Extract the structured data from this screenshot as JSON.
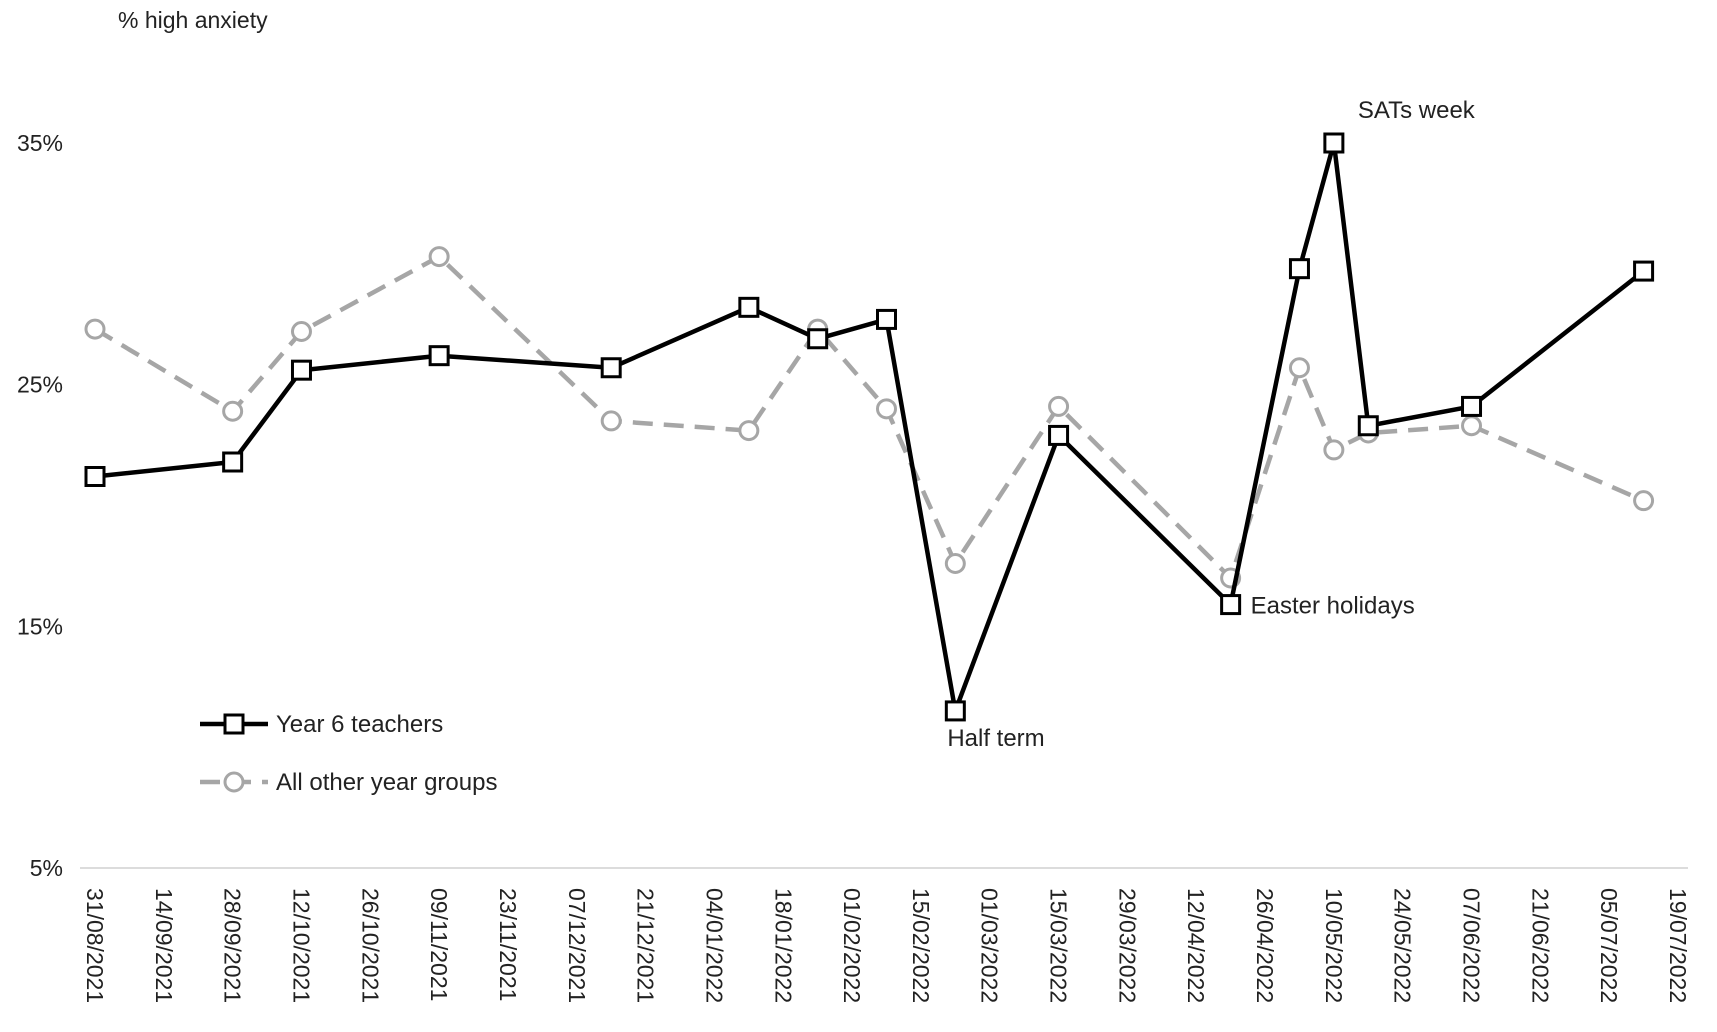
{
  "chart_data": {
    "type": "line",
    "ylabel": "% high anxiety",
    "ylim": [
      5,
      35
    ],
    "y_ticks": [
      5,
      15,
      25,
      35
    ],
    "y_tick_labels": [
      "5%",
      "15%",
      "25%",
      "35%"
    ],
    "x_tick_labels": [
      "31/08/2021",
      "14/09/2021",
      "28/09/2021",
      "12/10/2021",
      "26/10/2021",
      "09/11/2021",
      "23/11/2021",
      "07/12/2021",
      "21/12/2021",
      "04/01/2022",
      "18/01/2022",
      "01/02/2022",
      "15/02/2022",
      "01/03/2022",
      "15/03/2022",
      "29/03/2022",
      "12/04/2022",
      "26/04/2022",
      "10/05/2022",
      "24/05/2022",
      "07/06/2022",
      "21/06/2022",
      "05/07/2022",
      "19/07/2022"
    ],
    "xlim": [
      "2021-08-31",
      "2022-07-19"
    ],
    "grid": false,
    "legend_position": "bottom-left",
    "series": [
      {
        "name": "Year 6 teachers",
        "color": "#000000",
        "style": "solid",
        "marker": "square",
        "points": [
          {
            "x": "2021-08-31",
            "y": 21.2
          },
          {
            "x": "2021-09-28",
            "y": 21.8
          },
          {
            "x": "2021-10-12",
            "y": 25.6
          },
          {
            "x": "2021-11-09",
            "y": 26.2
          },
          {
            "x": "2021-12-14",
            "y": 25.7
          },
          {
            "x": "2022-01-11",
            "y": 28.2
          },
          {
            "x": "2022-01-25",
            "y": 26.9
          },
          {
            "x": "2022-02-08",
            "y": 27.7
          },
          {
            "x": "2022-02-22",
            "y": 11.5
          },
          {
            "x": "2022-03-15",
            "y": 22.9
          },
          {
            "x": "2022-04-19",
            "y": 15.9
          },
          {
            "x": "2022-05-03",
            "y": 29.8
          },
          {
            "x": "2022-05-10",
            "y": 35.0
          },
          {
            "x": "2022-05-17",
            "y": 23.3
          },
          {
            "x": "2022-06-07",
            "y": 24.1
          },
          {
            "x": "2022-07-12",
            "y": 29.7
          }
        ]
      },
      {
        "name": "All other year groups",
        "color": "#A6A6A6",
        "style": "dashed",
        "marker": "circle",
        "points": [
          {
            "x": "2021-08-31",
            "y": 27.3
          },
          {
            "x": "2021-09-28",
            "y": 23.9
          },
          {
            "x": "2021-10-12",
            "y": 27.2
          },
          {
            "x": "2021-11-09",
            "y": 30.3
          },
          {
            "x": "2021-12-14",
            "y": 23.5
          },
          {
            "x": "2022-01-11",
            "y": 23.1
          },
          {
            "x": "2022-01-25",
            "y": 27.3
          },
          {
            "x": "2022-02-08",
            "y": 24.0
          },
          {
            "x": "2022-02-22",
            "y": 17.6
          },
          {
            "x": "2022-03-15",
            "y": 24.1
          },
          {
            "x": "2022-04-19",
            "y": 17.0
          },
          {
            "x": "2022-05-03",
            "y": 25.7
          },
          {
            "x": "2022-05-10",
            "y": 22.3
          },
          {
            "x": "2022-05-17",
            "y": 23.0
          },
          {
            "x": "2022-06-07",
            "y": 23.3
          },
          {
            "x": "2022-07-12",
            "y": 20.2
          }
        ]
      }
    ],
    "annotations": [
      {
        "text": "SATs week",
        "series": 0,
        "point": 12,
        "placement": "above-right"
      },
      {
        "text": "Easter holidays",
        "series": 0,
        "point": 10,
        "placement": "right"
      },
      {
        "text": "Half term",
        "series": 0,
        "point": 8,
        "placement": "below"
      }
    ]
  }
}
